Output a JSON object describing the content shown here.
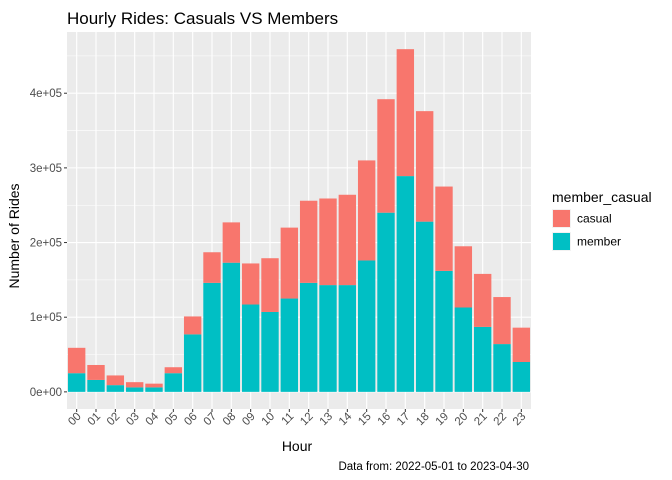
{
  "chart_data": {
    "type": "bar",
    "stacked": true,
    "title": "Hourly Rides: Casuals VS Members",
    "xlabel": "Hour",
    "ylabel": "Number of Rides",
    "caption": "Data from: 2022-05-01 to 2023-04-30",
    "categories": [
      "00",
      "01",
      "02",
      "03",
      "04",
      "05",
      "06",
      "07",
      "08",
      "09",
      "10",
      "11",
      "12",
      "13",
      "14",
      "15",
      "16",
      "17",
      "18",
      "19",
      "20",
      "21",
      "22",
      "23"
    ],
    "series": [
      {
        "name": "member",
        "color": "#00BFC4",
        "values": [
          25000,
          16000,
          9000,
          6000,
          6000,
          25000,
          77000,
          146000,
          173000,
          117000,
          107000,
          125000,
          146000,
          143000,
          143000,
          176000,
          240000,
          289000,
          228000,
          162000,
          113000,
          87000,
          64000,
          40000
        ]
      },
      {
        "name": "casual",
        "color": "#F8766D",
        "values": [
          34000,
          20000,
          13000,
          7000,
          5000,
          8000,
          24000,
          41000,
          54000,
          55000,
          72000,
          95000,
          110000,
          116000,
          121000,
          134000,
          152000,
          170000,
          148000,
          113000,
          82000,
          71000,
          63000,
          46000
        ]
      }
    ],
    "yticks": [
      0,
      100000,
      200000,
      300000,
      400000
    ],
    "ytick_labels": [
      "0e+00",
      "1e+05",
      "2e+05",
      "3e+05",
      "4e+05"
    ],
    "ylim": [
      -22950,
      482000
    ],
    "grid": true,
    "legend": {
      "title": "member_casual",
      "position": "right",
      "order": [
        "casual",
        "member"
      ]
    },
    "panel_color": "#EBEBEB",
    "xtick_rotation": 45
  }
}
